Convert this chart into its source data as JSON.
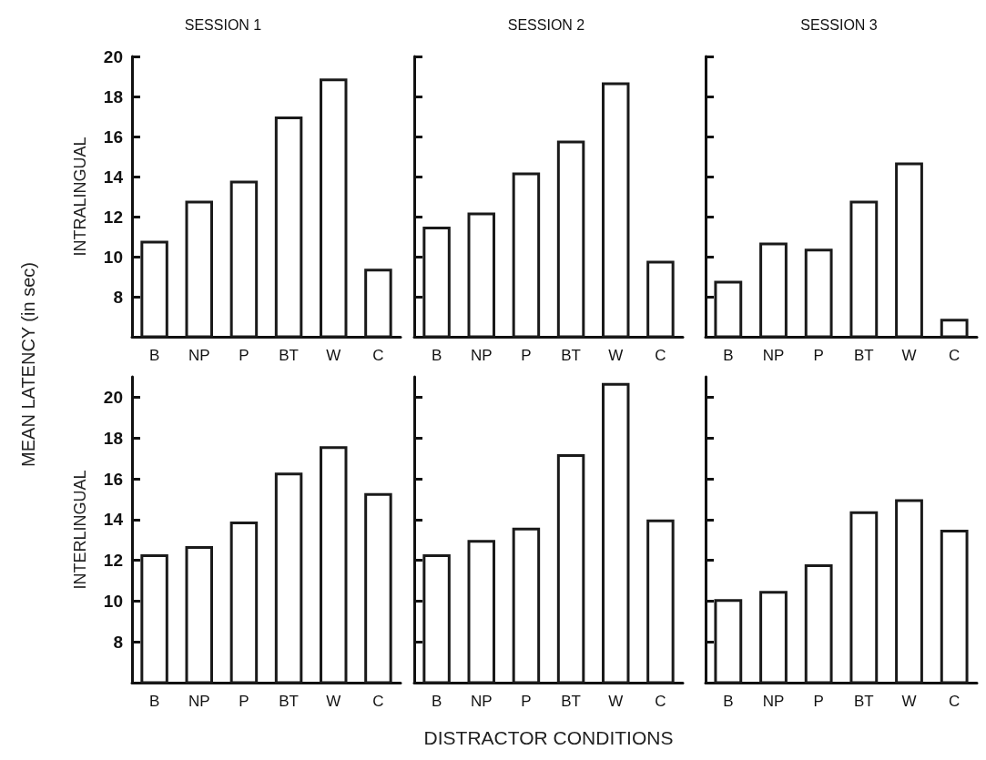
{
  "chart_data": [
    {
      "type": "bar",
      "title": "SESSION 1",
      "ylabel": "INTRALINGUAL",
      "annotations": [
        "MEAN LATENCY (in sec)"
      ],
      "categories": [
        "B",
        "NP",
        "P",
        "BT",
        "W",
        "C"
      ],
      "values": [
        10.8,
        12.8,
        13.8,
        17.0,
        18.9,
        9.4
      ],
      "color": "#1a1a1a",
      "ylim": [
        6,
        20
      ],
      "yticks": [
        8,
        10,
        12,
        14,
        16,
        18,
        20
      ]
    },
    {
      "type": "bar",
      "title": "SESSION 2",
      "categories": [
        "B",
        "NP",
        "P",
        "BT",
        "W",
        "C"
      ],
      "values": [
        11.5,
        12.2,
        14.2,
        15.8,
        18.7,
        9.8
      ],
      "color": "#1a1a1a",
      "ylim": [
        6,
        20
      ],
      "yticks": [
        {
          "value": 8,
          "label": null
        },
        {
          "value": 10,
          "label": null
        },
        {
          "value": 12,
          "label": null
        },
        {
          "value": 14,
          "label": null
        },
        {
          "value": 16,
          "label": null
        },
        {
          "value": 18,
          "label": null
        },
        {
          "value": 20,
          "label": null
        }
      ],
      "tick_labels": "x"
    },
    {
      "type": "bar",
      "title": "SESSION 3",
      "categories": [
        "B",
        "NP",
        "P",
        "BT",
        "W",
        "C"
      ],
      "values": [
        8.8,
        10.7,
        10.4,
        12.8,
        14.7,
        6.9
      ],
      "color": "#1a1a1a",
      "ylim": [
        6,
        20
      ],
      "yticks": [
        {
          "value": 8,
          "label": null
        },
        {
          "value": 10,
          "label": null
        },
        {
          "value": 12,
          "label": null
        },
        {
          "value": 14,
          "label": null
        },
        {
          "value": 16,
          "label": null
        },
        {
          "value": 18,
          "label": null
        },
        {
          "value": 20,
          "label": null
        }
      ],
      "tick_labels": "x"
    },
    {
      "type": "bar",
      "ylabel": "INTERLINGUAL",
      "categories": [
        "B",
        "NP",
        "P",
        "BT",
        "W",
        "C"
      ],
      "values": [
        12.3,
        12.7,
        13.9,
        16.3,
        17.6,
        15.3
      ],
      "color": "#1a1a1a",
      "ylim": [
        6,
        21
      ],
      "yticks": [
        8,
        10,
        12,
        14,
        16,
        18,
        20
      ]
    },
    {
      "type": "bar",
      "xlabel": "DISTRACTOR CONDITIONS",
      "categories": [
        "B",
        "NP",
        "P",
        "BT",
        "W",
        "C"
      ],
      "values": [
        12.3,
        13.0,
        13.6,
        17.2,
        20.7,
        14.0
      ],
      "color": "#1a1a1a",
      "ylim": [
        6,
        21
      ],
      "yticks": [
        {
          "value": 8,
          "label": null
        },
        {
          "value": 10,
          "label": null
        },
        {
          "value": 12,
          "label": null
        },
        {
          "value": 14,
          "label": null
        },
        {
          "value": 16,
          "label": null
        },
        {
          "value": 18,
          "label": null
        },
        {
          "value": 20,
          "label": null
        }
      ],
      "tick_labels": "x"
    },
    {
      "type": "bar",
      "categories": [
        "B",
        "NP",
        "P",
        "BT",
        "W",
        "C"
      ],
      "values": [
        10.1,
        10.5,
        11.8,
        14.4,
        15.0,
        13.5
      ],
      "color": "#1a1a1a",
      "ylim": [
        6,
        21
      ],
      "yticks": [
        {
          "value": 8,
          "label": null
        },
        {
          "value": 10,
          "label": null
        },
        {
          "value": 12,
          "label": null
        },
        {
          "value": 14,
          "label": null
        },
        {
          "value": 16,
          "label": null
        },
        {
          "value": 18,
          "label": null
        },
        {
          "value": 20,
          "label": null
        }
      ],
      "tick_labels": "x"
    }
  ]
}
